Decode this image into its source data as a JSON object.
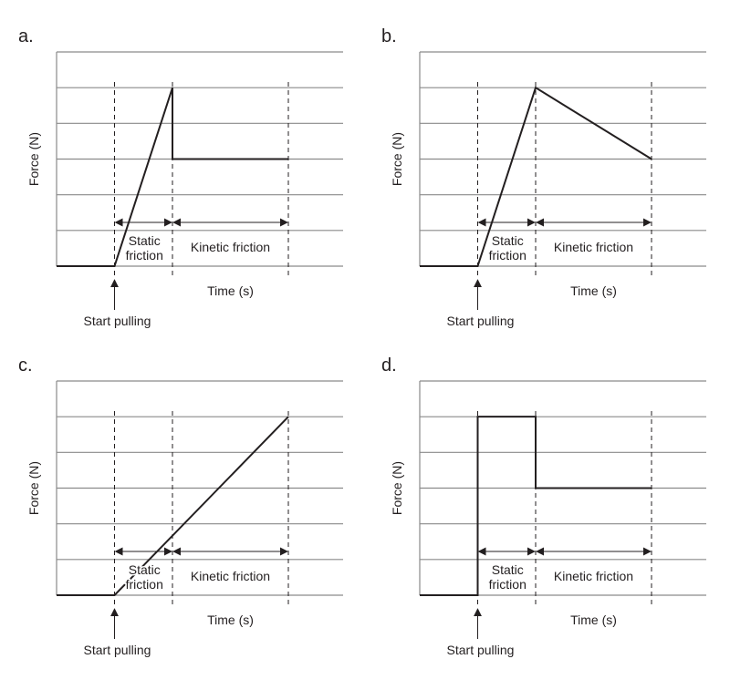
{
  "chart_data": [
    {
      "panel": "a.",
      "type": "line",
      "xlabel": "Time (s)",
      "ylabel": "Force (N)",
      "xlim": [
        0,
        5
      ],
      "ylim": [
        0,
        6
      ],
      "yticks": [
        0,
        1,
        2,
        3,
        4,
        5,
        6
      ],
      "grid": "horizontal",
      "series": [
        {
          "x": [
            0,
            1,
            2,
            2,
            4
          ],
          "y": [
            0,
            0,
            5,
            3,
            3
          ]
        }
      ],
      "markers": {
        "start": 1,
        "boundary": 2,
        "end": 4
      },
      "regions": [
        {
          "label_line1": "Static",
          "label_line2": "friction",
          "from": 1,
          "to": 2
        },
        {
          "label": "Kinetic friction",
          "from": 2,
          "to": 4
        }
      ],
      "annotation": "Start pulling"
    },
    {
      "panel": "b.",
      "type": "line",
      "xlabel": "Time (s)",
      "ylabel": "Force (N)",
      "xlim": [
        0,
        5
      ],
      "ylim": [
        0,
        6
      ],
      "yticks": [
        0,
        1,
        2,
        3,
        4,
        5,
        6
      ],
      "grid": "horizontal",
      "series": [
        {
          "x": [
            0,
            1,
            2,
            4
          ],
          "y": [
            0,
            0,
            5,
            3
          ]
        }
      ],
      "markers": {
        "start": 1,
        "boundary": 2,
        "end": 4
      },
      "regions": [
        {
          "label_line1": "Static",
          "label_line2": "friction",
          "from": 1,
          "to": 2
        },
        {
          "label": "Kinetic friction",
          "from": 2,
          "to": 4
        }
      ],
      "annotation": "Start pulling"
    },
    {
      "panel": "c.",
      "type": "line",
      "xlabel": "Time (s)",
      "ylabel": "Force (N)",
      "xlim": [
        0,
        5
      ],
      "ylim": [
        0,
        6
      ],
      "yticks": [
        0,
        1,
        2,
        3,
        4,
        5,
        6
      ],
      "grid": "horizontal",
      "series": [
        {
          "x": [
            0,
            1,
            4
          ],
          "y": [
            0,
            0,
            5
          ]
        }
      ],
      "markers": {
        "start": 1,
        "boundary": 2,
        "end": 4
      },
      "regions": [
        {
          "label_line1": "Static",
          "label_line2": "friction",
          "from": 1,
          "to": 2
        },
        {
          "label": "Kinetic friction",
          "from": 2,
          "to": 4
        }
      ],
      "annotation": "Start pulling"
    },
    {
      "panel": "d.",
      "type": "line",
      "xlabel": "Time (s)",
      "ylabel": "Force (N)",
      "xlim": [
        0,
        5
      ],
      "ylim": [
        0,
        6
      ],
      "yticks": [
        0,
        1,
        2,
        3,
        4,
        5,
        6
      ],
      "grid": "horizontal",
      "series": [
        {
          "x": [
            0,
            1,
            1,
            2,
            2,
            4
          ],
          "y": [
            0,
            0,
            5,
            5,
            3,
            3
          ]
        }
      ],
      "markers": {
        "start": 1,
        "boundary": 2,
        "end": 4
      },
      "regions": [
        {
          "label_line1": "Static",
          "label_line2": "friction",
          "from": 1,
          "to": 2
        },
        {
          "label": "Kinetic friction",
          "from": 2,
          "to": 4
        }
      ],
      "annotation": "Start pulling"
    }
  ]
}
